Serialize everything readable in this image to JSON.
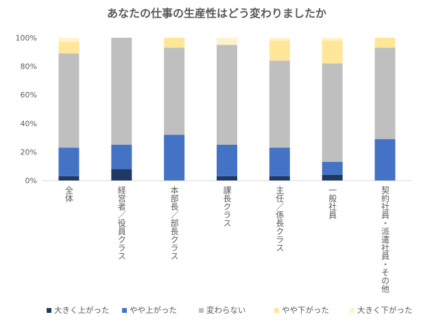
{
  "chart_data": {
    "type": "bar",
    "stacked": true,
    "percent": true,
    "title": "あなたの仕事の生産性はどう変わりましたか",
    "xlabel": "",
    "ylabel": "",
    "ylim": [
      0,
      100
    ],
    "yticks": [
      "0%",
      "20%",
      "40%",
      "60%",
      "80%",
      "100%"
    ],
    "grid": false,
    "legend_position": "bottom",
    "categories": [
      "全体",
      "経営者／役員クラス",
      "本部長／部長クラス",
      "課長クラス",
      "主任／係長クラス",
      "一般社員",
      "契約社員・派遣社員・その他"
    ],
    "series": [
      {
        "name": "大きく上がった",
        "color": "#1f3864",
        "values": [
          3,
          8,
          0,
          3,
          3,
          4,
          0
        ]
      },
      {
        "name": "やや上がった",
        "color": "#4472c4",
        "values": [
          20,
          17,
          32,
          22,
          20,
          9,
          29
        ]
      },
      {
        "name": "変わらない",
        "color": "#bfbfbf",
        "values": [
          66,
          75,
          61,
          70,
          61,
          69,
          64
        ]
      },
      {
        "name": "やや下がった",
        "color": "#ffe699",
        "values": [
          8,
          0,
          7,
          0,
          14,
          16,
          7
        ]
      },
      {
        "name": "大きく下がった",
        "color": "#fff2cc",
        "values": [
          3,
          0,
          0,
          5,
          2,
          2,
          0
        ]
      }
    ]
  }
}
